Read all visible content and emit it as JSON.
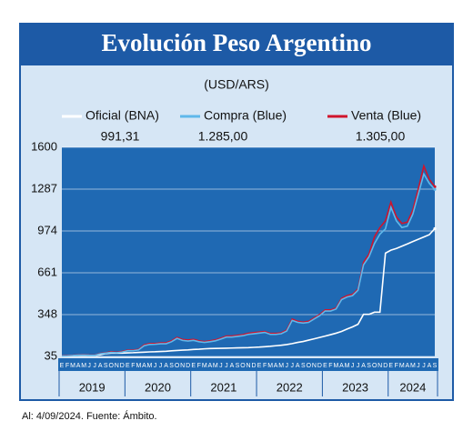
{
  "chart_data": {
    "type": "line",
    "title": "Evolución Peso Argentino",
    "subtitle": "(USD/ARS)",
    "footer": "Al: 4/09/2024. Fuente: Ámbito.",
    "categories": [
      "E",
      "F",
      "M",
      "A",
      "M",
      "J",
      "J",
      "A",
      "S",
      "O",
      "N",
      "D",
      "E",
      "F",
      "M",
      "A",
      "M",
      "J",
      "J",
      "A",
      "S",
      "O",
      "N",
      "D",
      "E",
      "F",
      "M",
      "A",
      "M",
      "J",
      "J",
      "A",
      "S",
      "O",
      "N",
      "D",
      "E",
      "F",
      "M",
      "A",
      "M",
      "J",
      "J",
      "A",
      "S",
      "O",
      "N",
      "D",
      "E",
      "F",
      "M",
      "A",
      "M",
      "J",
      "J",
      "A",
      "S",
      "O",
      "N",
      "D",
      "E",
      "F",
      "M",
      "A",
      "M",
      "J",
      "J",
      "A",
      "S"
    ],
    "years": [
      "2019",
      "2020",
      "2021",
      "2022",
      "2023",
      "2024"
    ],
    "ylim": [
      35,
      1600
    ],
    "yticks": [
      35,
      348,
      661,
      974,
      1287,
      1600
    ],
    "series": [
      {
        "name": "Oficial (BNA)",
        "color": "#ffffff",
        "legend_value": {
          "value": 991.31,
          "label": "991,31"
        },
        "values": [
          39,
          40,
          41,
          44,
          45,
          43,
          42,
          47,
          57,
          60,
          60,
          60,
          62,
          63,
          65,
          67,
          69,
          70,
          72,
          74,
          77,
          80,
          82,
          84,
          87,
          89,
          92,
          94,
          95,
          96,
          97,
          98,
          99,
          100,
          101,
          103,
          105,
          108,
          111,
          115,
          119,
          124,
          131,
          140,
          147,
          157,
          167,
          177,
          187,
          198,
          209,
          222,
          240,
          256,
          276,
          350,
          350,
          366,
          366,
          808,
          830,
          843,
          860,
          877,
          895,
          912,
          929,
          946,
          991.31
        ]
      },
      {
        "name": "Venta (Blue)",
        "color": "#d0142c",
        "legend_value": {
          "value": 1305,
          "label": "1.305,00"
        },
        "values": [
          41,
          42,
          44,
          47,
          48,
          46,
          45,
          58,
          63,
          70,
          66,
          72,
          82,
          82,
          88,
          122,
          132,
          132,
          137,
          137,
          152,
          178,
          162,
          158,
          163,
          152,
          146,
          152,
          159,
          172,
          188,
          188,
          193,
          198,
          208,
          213,
          218,
          222,
          207,
          207,
          212,
          233,
          315,
          298,
          292,
          298,
          323,
          348,
          383,
          383,
          398,
          470,
          490,
          500,
          540,
          740,
          800,
          930,
          1000,
          1050,
          1190,
          1080,
          1030,
          1040,
          1130,
          1290,
          1460,
          1360,
          1305
        ]
      },
      {
        "name": "Compra (Blue)",
        "color": "#5fb8ea",
        "legend_value": {
          "value": 1285,
          "label": "1.285,00"
        },
        "values": [
          39,
          40,
          42,
          45,
          46,
          44,
          43,
          55,
          60,
          65,
          63,
          68,
          78,
          78,
          84,
          115,
          125,
          126,
          130,
          130,
          145,
          170,
          155,
          150,
          155,
          145,
          140,
          145,
          152,
          165,
          180,
          180,
          185,
          190,
          200,
          205,
          210,
          215,
          200,
          200,
          205,
          225,
          305,
          290,
          285,
          290,
          315,
          340,
          375,
          375,
          390,
          460,
          480,
          490,
          530,
          720,
          780,
          880,
          950,
          990,
          1150,
          1050,
          1000,
          1010,
          1100,
          1250,
          1400,
          1330,
          1285
        ]
      }
    ],
    "grid": true
  }
}
